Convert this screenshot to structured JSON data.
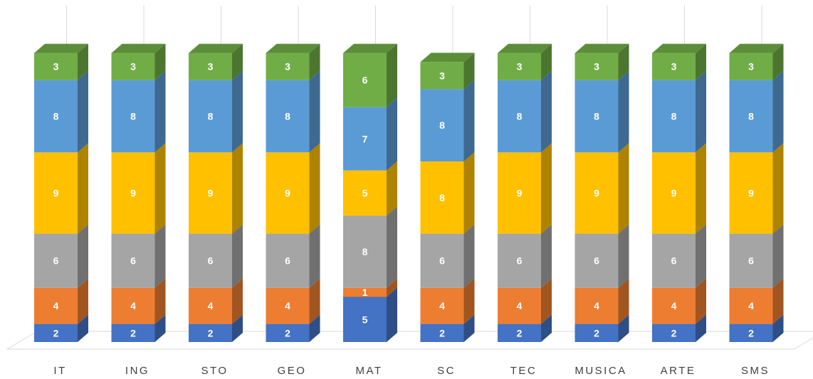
{
  "chart_data": {
    "type": "bar",
    "stacked": true,
    "three_d": true,
    "grid": false,
    "legend": "none",
    "categories": [
      "IT",
      "ING",
      "STO",
      "GEO",
      "MAT",
      "SC",
      "TEC",
      "MUSICA",
      "ARTE",
      "SMS"
    ],
    "series": [
      {
        "color": "#4472C4",
        "values": [
          2,
          2,
          2,
          2,
          5,
          2,
          2,
          2,
          2,
          2
        ]
      },
      {
        "color": "#ED7D31",
        "values": [
          4,
          4,
          4,
          4,
          1,
          4,
          4,
          4,
          4,
          4
        ]
      },
      {
        "color": "#A5A5A5",
        "values": [
          6,
          6,
          6,
          6,
          8,
          6,
          6,
          6,
          6,
          6
        ]
      },
      {
        "color": "#FFC000",
        "values": [
          9,
          9,
          9,
          9,
          5,
          8,
          9,
          9,
          9,
          9
        ]
      },
      {
        "color": "#5B9BD5",
        "values": [
          8,
          8,
          8,
          8,
          7,
          8,
          8,
          8,
          8,
          8
        ]
      },
      {
        "color": "#70AD47",
        "values": [
          3,
          3,
          3,
          3,
          6,
          3,
          3,
          3,
          3,
          3
        ]
      }
    ],
    "ylim": [
      0,
      32
    ]
  }
}
